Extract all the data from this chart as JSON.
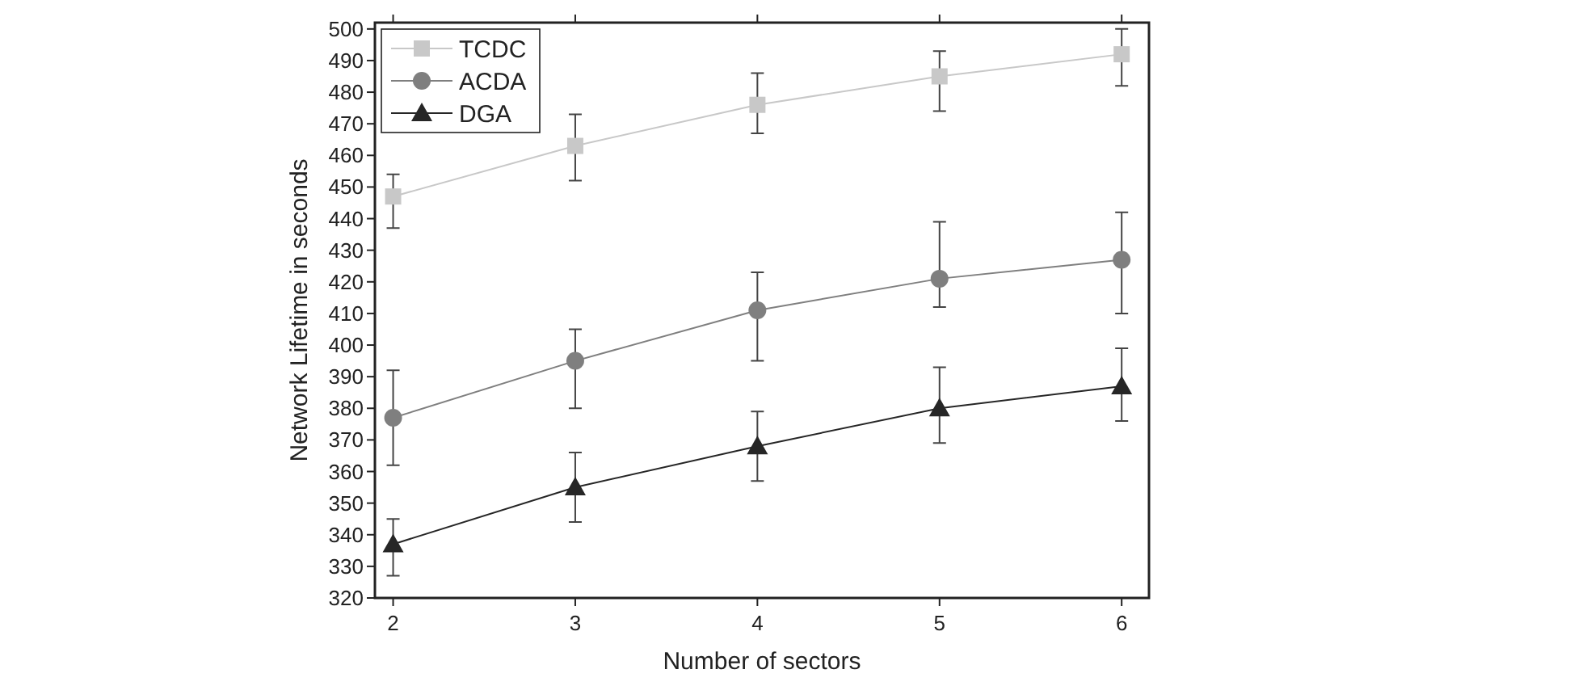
{
  "chart_data": {
    "type": "line",
    "xlabel": "Number of sectors",
    "ylabel": "Network Lifetime in seconds",
    "x": [
      2,
      3,
      4,
      5,
      6
    ],
    "xlim": [
      1.9,
      6.15
    ],
    "xticks": [
      2,
      3,
      4,
      5,
      6
    ],
    "ylim": [
      320,
      502
    ],
    "yticks": [
      320,
      330,
      340,
      350,
      360,
      370,
      380,
      390,
      400,
      410,
      420,
      430,
      440,
      450,
      460,
      470,
      480,
      490,
      500
    ],
    "legend": "top left",
    "grid": false,
    "series": [
      {
        "name": "TCDC",
        "color": "#c8c8c8",
        "marker": "square",
        "values": [
          447,
          463,
          476,
          485,
          492
        ],
        "errors": [
          [
            437,
            454
          ],
          [
            452,
            473
          ],
          [
            467,
            486
          ],
          [
            474,
            493
          ],
          [
            482,
            500
          ]
        ]
      },
      {
        "name": "ACDA",
        "color": "#7f7f7f",
        "marker": "circle",
        "values": [
          377,
          395,
          411,
          421,
          427
        ],
        "errors": [
          [
            362,
            392
          ],
          [
            380,
            405
          ],
          [
            395,
            423
          ],
          [
            412,
            439
          ],
          [
            410,
            442
          ]
        ]
      },
      {
        "name": "DGA",
        "color": "#262626",
        "marker": "triangle",
        "values": [
          337,
          355,
          368,
          380,
          387
        ],
        "errors": [
          [
            327,
            345
          ],
          [
            344,
            366
          ],
          [
            357,
            379
          ],
          [
            369,
            393
          ],
          [
            376,
            399
          ]
        ]
      }
    ]
  }
}
